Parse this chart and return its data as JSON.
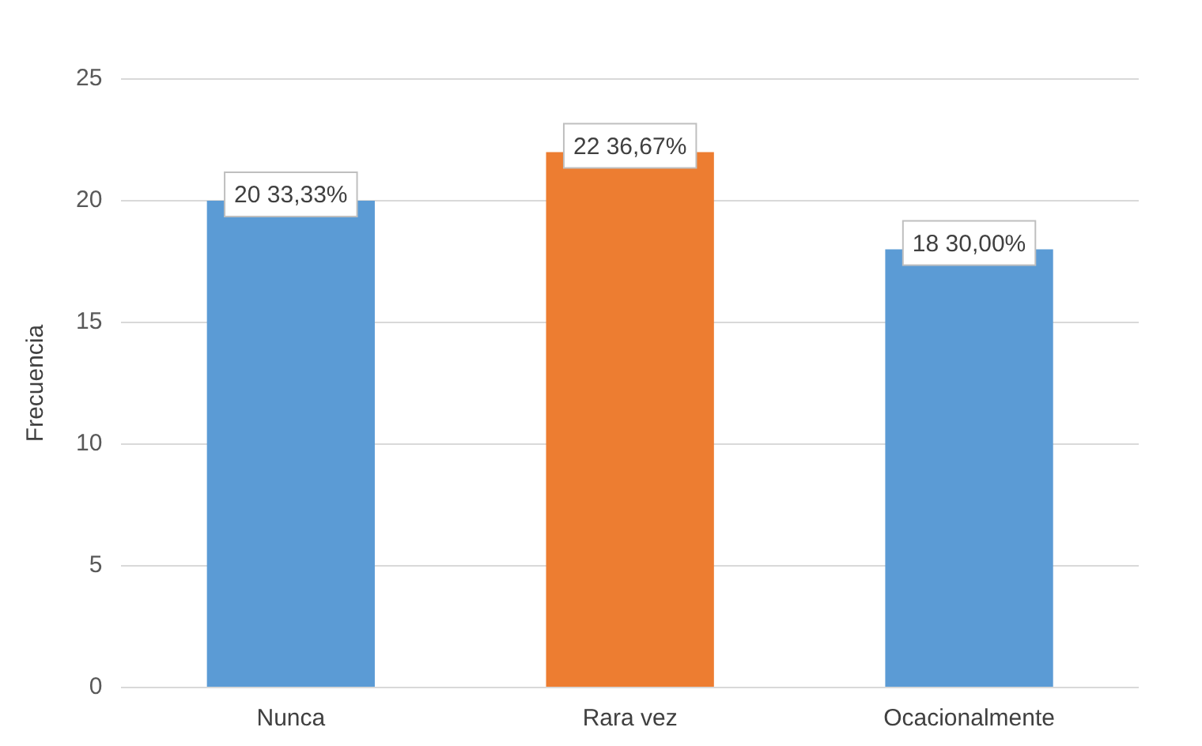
{
  "chart_data": {
    "type": "bar",
    "ylabel": "Frecuencia",
    "categories": [
      "Nunca",
      "Rara vez",
      "Ocacionalmente"
    ],
    "values": [
      20,
      22,
      18
    ],
    "colors": [
      "#5b9bd5",
      "#ed7d31",
      "#5b9bd5"
    ],
    "value_labels": [
      "20 33,33%",
      "22 36,67%",
      "18 30,00%"
    ],
    "ylim": [
      0,
      25
    ],
    "yticks": [
      0,
      5,
      10,
      15,
      20,
      25
    ],
    "grid": "y",
    "legend": false
  }
}
